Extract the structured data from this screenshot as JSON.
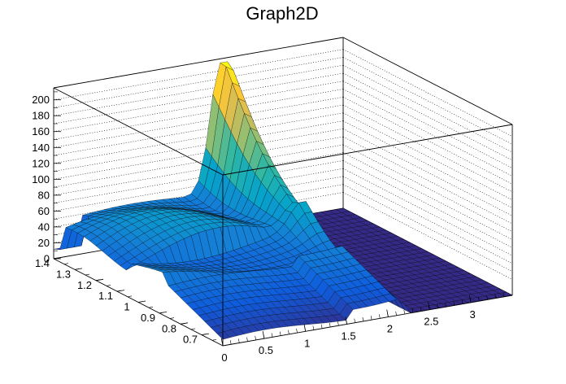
{
  "chart_data": {
    "type": "surface",
    "title": "Graph2D",
    "x": {
      "range": [
        0,
        3.5
      ],
      "ticks": [
        "0",
        "0.5",
        "1",
        "1.5",
        "2",
        "2.5",
        "3"
      ]
    },
    "y": {
      "range": [
        0.6,
        1.4
      ],
      "ticks": [
        "0.7",
        "0.8",
        "0.9",
        "1",
        "1.1",
        "1.2",
        "1.3",
        "1.4"
      ]
    },
    "z": {
      "range": [
        0,
        215
      ],
      "ticks": [
        "0",
        "20",
        "40",
        "60",
        "80",
        "100",
        "120",
        "140",
        "160",
        "180",
        "200"
      ]
    },
    "grid": true,
    "surface_shape": [
      {
        "x": 0.0,
        "y": 1.4,
        "z": 12
      },
      {
        "x": 0.0,
        "y": 1.0,
        "z": 55
      },
      {
        "x": 0.0,
        "y": 0.6,
        "z": 70
      },
      {
        "x": 1.0,
        "y": 1.1,
        "z": 45
      },
      {
        "x": 1.0,
        "y": 0.7,
        "z": 25
      },
      {
        "x": 1.5,
        "y": 0.6,
        "z": 22
      },
      {
        "x": 1.5,
        "y": 1.1,
        "z": 55
      },
      {
        "x": 2.0,
        "y": 0.7,
        "z": 70
      },
      {
        "x": 2.0,
        "y": 1.0,
        "z": 185
      },
      {
        "x": 2.0,
        "y": 1.2,
        "z": 205
      },
      {
        "x": 2.3,
        "y": 1.0,
        "z": 0
      },
      {
        "x": 3.5,
        "y": 1.0,
        "z": 0
      }
    ],
    "colors": {
      "palette": [
        "#352a87",
        "#0f5cdd",
        "#1481d6",
        "#06a4ca",
        "#2eb7a4",
        "#87bf77",
        "#d1bb59",
        "#fec832",
        "#f9fb0e"
      ],
      "frame": "#000000",
      "mesh": "#000000",
      "background": "#ffffff"
    }
  }
}
